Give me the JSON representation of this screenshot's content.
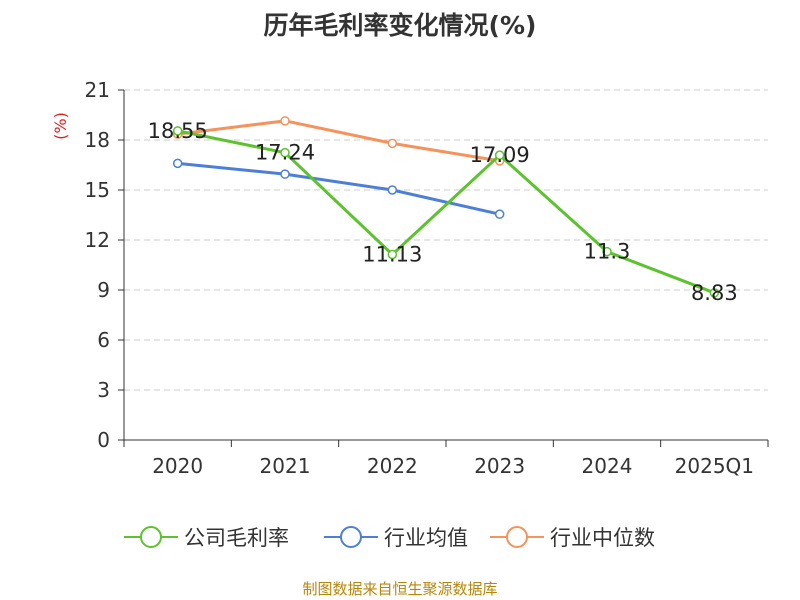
{
  "chart_data": {
    "type": "line",
    "title": "历年毛利率变化情况(%)",
    "ylabel": "(%)",
    "xlabel": "",
    "ylim": [
      0,
      21
    ],
    "yticks": [
      0,
      3,
      6,
      9,
      12,
      15,
      18,
      21
    ],
    "categories": [
      "2020",
      "2021",
      "2022",
      "2023",
      "2024",
      "2025Q1"
    ],
    "grid": true,
    "legend_position": "bottom",
    "series": [
      {
        "name": "公司毛利率",
        "color": "#5cc22e",
        "values": [
          18.55,
          17.24,
          11.13,
          17.09,
          11.3,
          8.83
        ],
        "labels": [
          "18.55",
          "17.24",
          "11.13",
          "17.09",
          "11.3",
          "8.83"
        ]
      },
      {
        "name": "行业均值",
        "color": "#4d7fd6",
        "values": [
          16.6,
          15.95,
          15.0,
          13.55,
          null,
          null
        ]
      },
      {
        "name": "行业中位数",
        "color": "#f4935b",
        "values": [
          18.35,
          19.15,
          17.8,
          16.75,
          null,
          null
        ]
      }
    ]
  },
  "source": "制图数据来自恒生聚源数据库",
  "colors": {
    "label_text": "#222222",
    "ylabel": "#e02020",
    "axis": "#333333",
    "grid": "#cccccc"
  }
}
